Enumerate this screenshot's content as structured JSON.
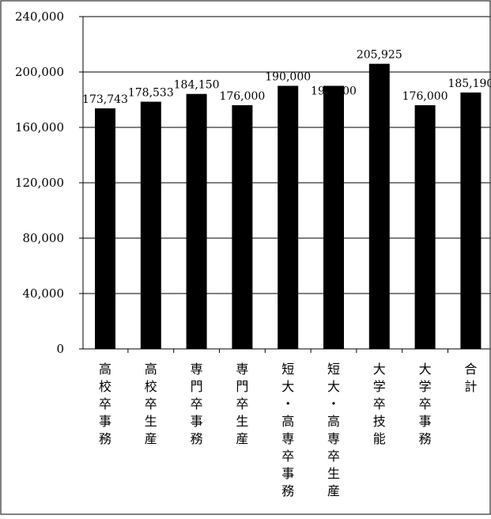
{
  "chart_data": {
    "type": "bar",
    "categories": [
      "高校卒事務",
      "高校卒生産",
      "専門卒事務",
      "専門卒生産",
      "短大・高専卒事務",
      "短大・高専卒生産",
      "大学卒技能",
      "大学卒事務",
      "合計"
    ],
    "values": [
      173743,
      178533,
      184150,
      176000,
      190000,
      190000,
      205925,
      176000,
      185190
    ],
    "data_labels": [
      "173,743",
      "178,533",
      "184,150",
      "176,000",
      "190,000",
      "190,000",
      "205,925",
      "176,000",
      "185,190"
    ],
    "ylim": [
      0,
      240000
    ],
    "yticks": [
      0,
      40000,
      80000,
      120000,
      160000,
      200000,
      240000
    ],
    "ytick_labels": [
      "0",
      "40,000",
      "80,000",
      "120,000",
      "160,000",
      "200,000",
      "240,000"
    ],
    "grid": true,
    "legend": "none",
    "bar_color": "#000000"
  }
}
